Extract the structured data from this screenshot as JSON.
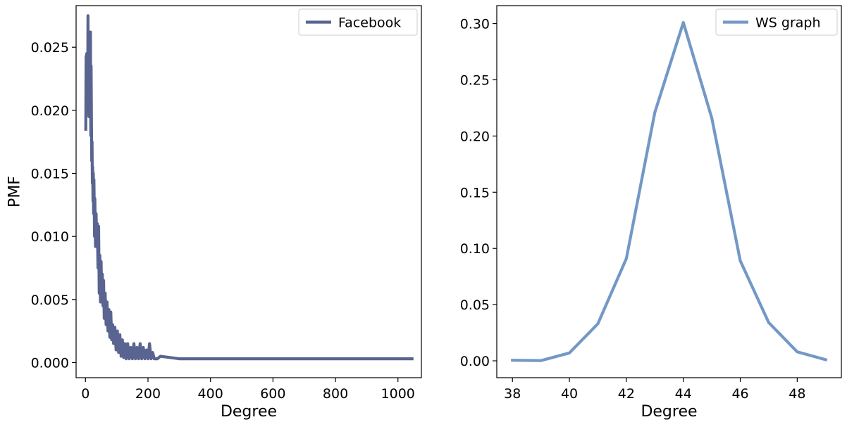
{
  "chart_data": [
    {
      "type": "line",
      "title": "",
      "xlabel": "Degree",
      "ylabel": "PMF",
      "xlim": [
        -30,
        1075
      ],
      "ylim": [
        -0.0012,
        0.0283
      ],
      "xticks": [
        0,
        200,
        400,
        600,
        800,
        1000
      ],
      "xtick_labels": [
        "0",
        "200",
        "400",
        "600",
        "800",
        "1000"
      ],
      "yticks": [
        0.0,
        0.005,
        0.01,
        0.015,
        0.02,
        0.025
      ],
      "ytick_labels": [
        "0.000",
        "0.005",
        "0.010",
        "0.015",
        "0.020",
        "0.025"
      ],
      "grid": false,
      "legend": "upper-right",
      "color": "#5a6490",
      "series": [
        {
          "name": "Facebook",
          "x": [
            1,
            2,
            3,
            4,
            5,
            6,
            7,
            8,
            9,
            10,
            11,
            12,
            13,
            14,
            15,
            16,
            17,
            18,
            19,
            20,
            21,
            22,
            23,
            24,
            25,
            26,
            27,
            28,
            29,
            30,
            32,
            34,
            36,
            38,
            40,
            42,
            44,
            46,
            48,
            50,
            52,
            54,
            56,
            58,
            60,
            63,
            66,
            69,
            72,
            75,
            78,
            81,
            84,
            87,
            90,
            94,
            98,
            102,
            106,
            110,
            114,
            118,
            122,
            126,
            130,
            135,
            140,
            145,
            150,
            155,
            160,
            165,
            170,
            175,
            180,
            185,
            190,
            195,
            200,
            205,
            210,
            215,
            220,
            230,
            240,
            300,
            400,
            500,
            600,
            700,
            800,
            900,
            1000,
            1045
          ],
          "y": [
            0.0185,
            0.0243,
            0.0212,
            0.0245,
            0.0198,
            0.024,
            0.0205,
            0.0275,
            0.021,
            0.0232,
            0.0195,
            0.0262,
            0.0205,
            0.023,
            0.02,
            0.0262,
            0.018,
            0.0235,
            0.0195,
            0.016,
            0.0175,
            0.0142,
            0.0155,
            0.0128,
            0.015,
            0.0118,
            0.0145,
            0.0125,
            0.01,
            0.013,
            0.0092,
            0.0118,
            0.0095,
            0.011,
            0.0075,
            0.0108,
            0.0055,
            0.0085,
            0.0048,
            0.008,
            0.0052,
            0.007,
            0.0045,
            0.0065,
            0.0035,
            0.0055,
            0.003,
            0.0048,
            0.0025,
            0.0042,
            0.002,
            0.004,
            0.0018,
            0.003,
            0.0015,
            0.0028,
            0.001,
            0.0025,
            0.0008,
            0.0022,
            0.0005,
            0.0018,
            0.0004,
            0.0015,
            0.0003,
            0.0015,
            0.0003,
            0.0012,
            0.0003,
            0.0015,
            0.0003,
            0.0012,
            0.0003,
            0.0015,
            0.0003,
            0.0012,
            0.0003,
            0.001,
            0.0003,
            0.0015,
            0.0003,
            0.0008,
            0.0003,
            0.0003,
            0.0005,
            0.0003,
            0.0003,
            0.0003,
            0.0003,
            0.0003,
            0.0003,
            0.0003,
            0.0003,
            0.0003
          ]
        }
      ]
    },
    {
      "type": "line",
      "title": "",
      "xlabel": "Degree",
      "ylabel": "",
      "xlim": [
        37.45,
        49.55
      ],
      "ylim": [
        -0.015,
        0.316
      ],
      "xticks": [
        38,
        40,
        42,
        44,
        46,
        48
      ],
      "xtick_labels": [
        "38",
        "40",
        "42",
        "44",
        "46",
        "48"
      ],
      "yticks": [
        0.0,
        0.05,
        0.1,
        0.15,
        0.2,
        0.25,
        0.3
      ],
      "ytick_labels": [
        "0.00",
        "0.05",
        "0.10",
        "0.15",
        "0.20",
        "0.25",
        "0.30"
      ],
      "grid": false,
      "legend": "upper-right",
      "color": "#7398c6",
      "series": [
        {
          "name": "WS graph",
          "x": [
            38,
            39,
            40,
            41,
            42,
            43,
            44,
            45,
            46,
            47,
            48,
            49
          ],
          "y": [
            0.0005,
            0.0002,
            0.007,
            0.033,
            0.091,
            0.221,
            0.301,
            0.216,
            0.089,
            0.034,
            0.008,
            0.001
          ]
        }
      ]
    }
  ]
}
